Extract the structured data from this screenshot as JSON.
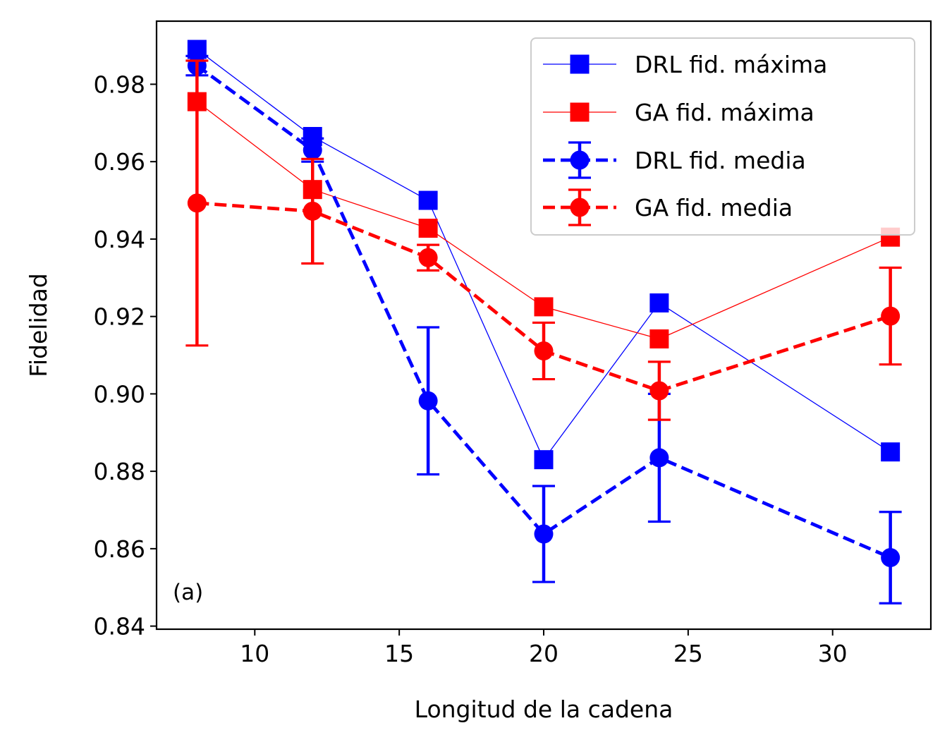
{
  "chart_data": {
    "type": "line",
    "xlabel": "Longitud de la cadena",
    "ylabel": "Fidelidad",
    "annotation": "(a)",
    "xlim": [
      6.6,
      33.4
    ],
    "ylim": [
      0.8392,
      0.9963
    ],
    "xticks": [
      10,
      15,
      20,
      25,
      30
    ],
    "yticks": [
      0.84,
      0.86,
      0.88,
      0.9,
      0.92,
      0.94,
      0.96,
      0.98
    ],
    "ytick_labels": [
      "0.84",
      "0.86",
      "0.88",
      "0.90",
      "0.92",
      "0.94",
      "0.96",
      "0.98"
    ],
    "legend_position": "top-right",
    "x": [
      8,
      12,
      16,
      20,
      24,
      32
    ],
    "series": [
      {
        "name": "DRL fid. máxima",
        "color": "#0000ff",
        "marker": "square",
        "style": "solid-thin",
        "values": [
          0.989,
          0.9665,
          0.95,
          0.883,
          0.9235,
          0.885
        ]
      },
      {
        "name": "GA fid. máxima",
        "color": "#ff0000",
        "marker": "square",
        "style": "solid-thin",
        "values": [
          0.9755,
          0.9528,
          0.9428,
          0.9225,
          0.9142,
          0.9405
        ]
      },
      {
        "name": "DRL fid. media",
        "color": "#0000ff",
        "marker": "circle",
        "style": "dashed-errorbar",
        "values": [
          0.9848,
          0.963,
          0.8982,
          0.8638,
          0.8835,
          0.8577
        ],
        "errors": [
          0.0025,
          0.003,
          0.019,
          0.0124,
          0.0165,
          0.0118
        ]
      },
      {
        "name": "GA fid. media",
        "color": "#ff0000",
        "marker": "circle",
        "style": "dashed-errorbar",
        "values": [
          0.9493,
          0.9472,
          0.9352,
          0.9111,
          0.9008,
          0.9201
        ],
        "errors": [
          0.0368,
          0.0135,
          0.0033,
          0.0073,
          0.0075,
          0.0125
        ]
      }
    ]
  }
}
